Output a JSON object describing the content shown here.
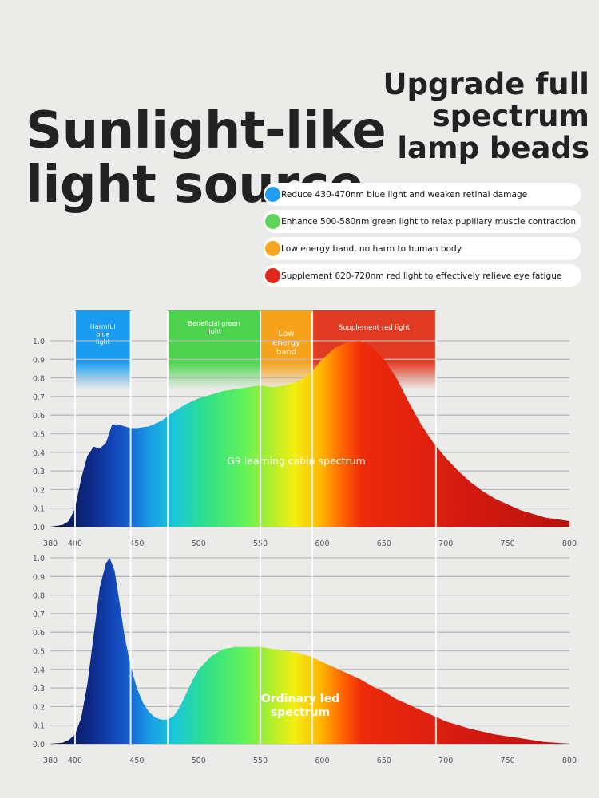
{
  "hero": {
    "title_line1": "Sunlight-like",
    "title_line2": "light source"
  },
  "upgrade": {
    "line1": "Upgrade full",
    "line2": "spectrum",
    "line3": "lamp beads"
  },
  "features": [
    {
      "text": "Reduce 430-470nm blue light and weaken retinal damage",
      "color": "#1e9ff2"
    },
    {
      "text": "Enhance 500-580nm green light to relax pupillary muscle contraction",
      "color": "#5ed45a"
    },
    {
      "text": "Low energy band, no harm to human body",
      "color": "#f5a623"
    },
    {
      "text": "Supplement 620-720nm red light to effectively relieve eye fatigue",
      "color": "#e0281c"
    }
  ],
  "bands": [
    {
      "label": "Harmful blue light",
      "x_start": 400,
      "x_end": 445,
      "color": "#1a9cf0"
    },
    {
      "label": "Beneficial green light",
      "x_start": 475,
      "x_end": 550,
      "color": "#4ed34e"
    },
    {
      "label": "Low energy band",
      "x_start": 550,
      "x_end": 592,
      "color": "#f7a21b"
    },
    {
      "label": "Supplement red light",
      "x_start": 592,
      "x_end": 692,
      "color": "#e13a22"
    }
  ],
  "chart_data": [
    {
      "type": "area",
      "label": "G9 learning cabin spectrum",
      "xlim": [
        380,
        800
      ],
      "ylim": [
        0,
        1.0
      ],
      "x_ticks": [
        "380",
        "400",
        "450",
        "500",
        "550",
        "600",
        "650",
        "700",
        "750",
        "800"
      ],
      "y_ticks": [
        "0.0",
        "0.1",
        "0.2",
        "0.3",
        "0.4",
        "0.5",
        "0.6",
        "0.7",
        "0.8",
        "0.9",
        "1.0"
      ],
      "grid": true,
      "x": [
        380,
        390,
        395,
        400,
        405,
        410,
        415,
        420,
        425,
        430,
        435,
        440,
        445,
        450,
        460,
        470,
        480,
        490,
        500,
        510,
        520,
        530,
        540,
        550,
        560,
        570,
        580,
        590,
        600,
        610,
        620,
        630,
        640,
        650,
        660,
        670,
        680,
        690,
        700,
        710,
        720,
        730,
        740,
        750,
        760,
        770,
        780,
        790,
        800
      ],
      "values": [
        0.0,
        0.01,
        0.03,
        0.1,
        0.26,
        0.38,
        0.43,
        0.42,
        0.45,
        0.55,
        0.55,
        0.54,
        0.53,
        0.53,
        0.54,
        0.57,
        0.62,
        0.66,
        0.69,
        0.71,
        0.73,
        0.74,
        0.75,
        0.76,
        0.75,
        0.76,
        0.78,
        0.82,
        0.9,
        0.96,
        0.99,
        1.0,
        0.97,
        0.9,
        0.8,
        0.67,
        0.55,
        0.45,
        0.37,
        0.3,
        0.24,
        0.19,
        0.15,
        0.12,
        0.09,
        0.07,
        0.05,
        0.04,
        0.03
      ]
    },
    {
      "type": "area",
      "label": "Ordinary led spectrum",
      "xlim": [
        380,
        800
      ],
      "ylim": [
        0,
        1.0
      ],
      "x_ticks": [
        "380",
        "400",
        "450",
        "500",
        "550",
        "600",
        "650",
        "700",
        "750",
        "800"
      ],
      "y_ticks": [
        "0.0",
        "0.1",
        "0.2",
        "0.3",
        "0.4",
        "0.5",
        "0.6",
        "0.7",
        "0.8",
        "0.9",
        "1.0"
      ],
      "grid": true,
      "x": [
        380,
        390,
        395,
        400,
        405,
        410,
        415,
        420,
        425,
        428,
        432,
        436,
        440,
        445,
        450,
        455,
        460,
        465,
        470,
        475,
        480,
        485,
        490,
        495,
        500,
        510,
        520,
        530,
        540,
        550,
        560,
        570,
        580,
        590,
        600,
        610,
        620,
        630,
        640,
        650,
        660,
        670,
        680,
        690,
        700,
        720,
        740,
        760,
        780,
        800
      ],
      "values": [
        0.0,
        0.005,
        0.02,
        0.05,
        0.14,
        0.32,
        0.58,
        0.84,
        0.97,
        1.0,
        0.93,
        0.76,
        0.58,
        0.42,
        0.3,
        0.22,
        0.17,
        0.14,
        0.13,
        0.13,
        0.15,
        0.2,
        0.27,
        0.34,
        0.4,
        0.47,
        0.51,
        0.52,
        0.52,
        0.52,
        0.51,
        0.5,
        0.49,
        0.47,
        0.44,
        0.41,
        0.38,
        0.35,
        0.31,
        0.28,
        0.24,
        0.21,
        0.18,
        0.15,
        0.12,
        0.08,
        0.05,
        0.03,
        0.01,
        0.0
      ]
    }
  ]
}
